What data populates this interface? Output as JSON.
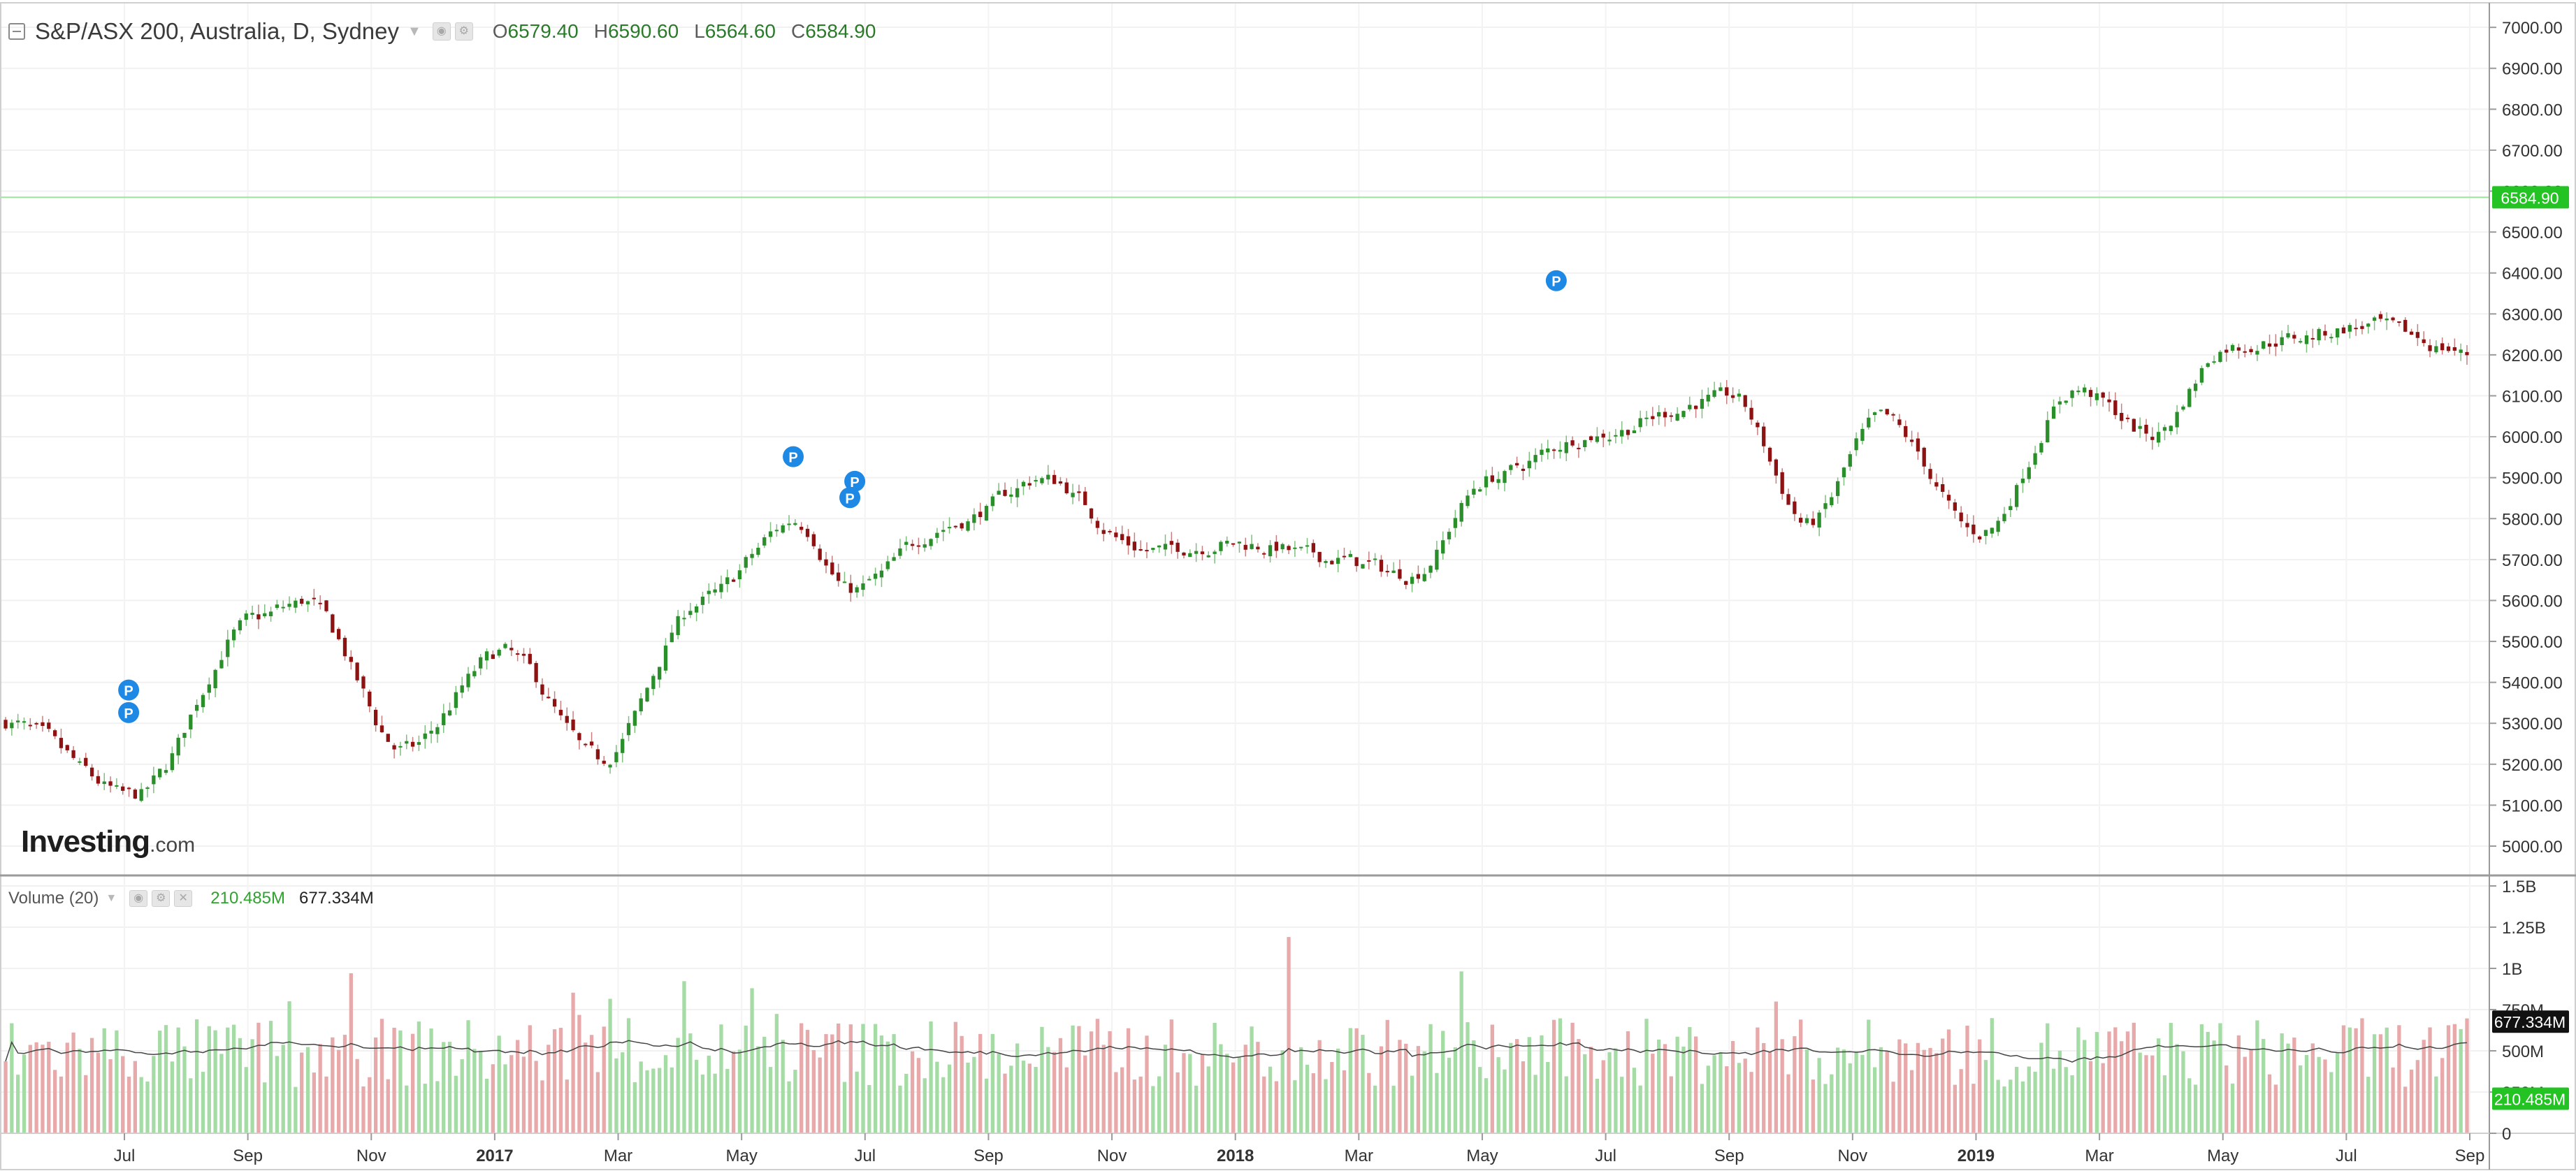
{
  "header": {
    "symbol": "S&P/ASX 200, Australia, D, Sydney",
    "open_label": "O",
    "open": "6579.40",
    "high_label": "H",
    "high": "6590.60",
    "low_label": "L",
    "low": "6564.60",
    "close_label": "C",
    "close": "6584.90"
  },
  "volume_header": {
    "title": "Volume (20)",
    "volume_value": "210.485M",
    "ma_value": "677.334M"
  },
  "logo": {
    "main": "Investing",
    "suffix": ".com"
  },
  "colors": {
    "up": "#2a8f2a",
    "down": "#8e1212",
    "up_volume": "#a5dca5",
    "down_volume": "#e8a9aa",
    "last_price_badge": "#22c322",
    "volume_ma_badge": "#111111",
    "volume_badge": "#22c322",
    "last_price_line": "#9be39b"
  },
  "chart_data": [
    {
      "type": "candlestick",
      "title": "S&P/ASX 200, Australia, D, Sydney",
      "x_tick_labels": [
        "Jul",
        "Sep",
        "Nov",
        "2017",
        "Mar",
        "May",
        "Jul",
        "Sep",
        "Nov",
        "2018",
        "Mar",
        "May",
        "Jul",
        "Sep",
        "Nov",
        "2019",
        "Mar",
        "May",
        "Jul",
        "Sep"
      ],
      "y_tick_labels": [
        "7000.00",
        "6900.00",
        "6800.00",
        "6700.00",
        "6600.00",
        "6500.00",
        "6400.00",
        "6300.00",
        "6200.00",
        "6100.00",
        "6000.00",
        "5900.00",
        "5800.00",
        "5700.00",
        "5600.00",
        "5500.00",
        "5400.00",
        "5300.00",
        "5200.00",
        "5100.00",
        "5000.00"
      ],
      "ylim": [
        4930,
        7060
      ],
      "last_price": "6584.90",
      "approx_close_path": [
        {
          "x": 0.0,
          "y": 5300
        },
        {
          "x": 0.05,
          "y": 5120
        },
        {
          "x": 0.1,
          "y": 5560
        },
        {
          "x": 0.12,
          "y": 5600
        },
        {
          "x": 0.16,
          "y": 5230
        },
        {
          "x": 0.2,
          "y": 5480
        },
        {
          "x": 0.24,
          "y": 5210
        },
        {
          "x": 0.28,
          "y": 5600
        },
        {
          "x": 0.32,
          "y": 5800
        },
        {
          "x": 0.34,
          "y": 5620
        },
        {
          "x": 0.38,
          "y": 5780
        },
        {
          "x": 0.42,
          "y": 5900
        },
        {
          "x": 0.46,
          "y": 5720
        },
        {
          "x": 0.5,
          "y": 5740
        },
        {
          "x": 0.54,
          "y": 5700
        },
        {
          "x": 0.57,
          "y": 5660
        },
        {
          "x": 0.6,
          "y": 5900
        },
        {
          "x": 0.64,
          "y": 6000
        },
        {
          "x": 0.7,
          "y": 6100
        },
        {
          "x": 0.73,
          "y": 5780
        },
        {
          "x": 0.76,
          "y": 6050
        },
        {
          "x": 0.8,
          "y": 5760
        },
        {
          "x": 0.84,
          "y": 6120
        },
        {
          "x": 0.87,
          "y": 6000
        },
        {
          "x": 0.9,
          "y": 6220
        },
        {
          "x": 0.96,
          "y": 6270
        },
        {
          "x": 1.0,
          "y": 6200
        }
      ]
    },
    {
      "type": "bar",
      "title": "Volume (20)",
      "y_tick_labels": [
        "1.5B",
        "1.25B",
        "1B",
        "750M",
        "500M",
        "250M",
        "0"
      ],
      "ylim": [
        0,
        1.5
      ],
      "y_unit": "B",
      "volume_badge": "210.485M",
      "ma_badge": "677.334M"
    }
  ],
  "markers": [
    {
      "label": "P"
    },
    {
      "label": "P"
    },
    {
      "label": "P"
    },
    {
      "label": "P"
    },
    {
      "label": "P"
    },
    {
      "label": "P"
    }
  ]
}
